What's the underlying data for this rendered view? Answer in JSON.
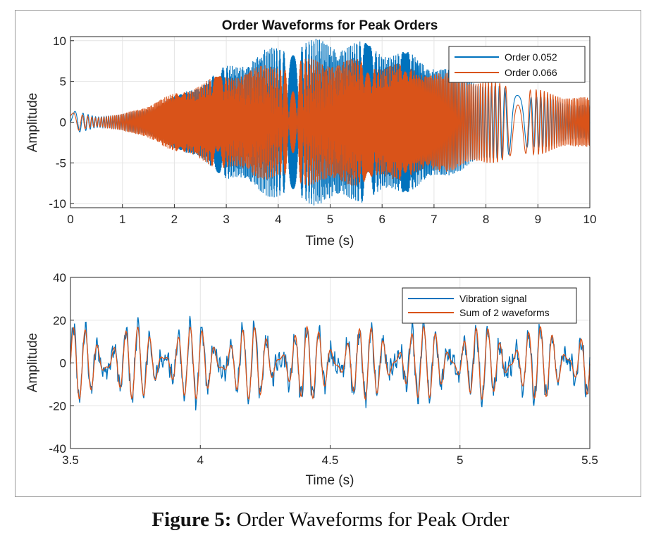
{
  "caption": {
    "label": "Figure 5:",
    "text": " Order Waveforms for Peak Order"
  },
  "colors": {
    "series1": "#0072BD",
    "series2": "#D95319",
    "grid": "#e4e4e4",
    "axis": "#262626"
  },
  "chart_data": [
    {
      "type": "line",
      "title": "Order Waveforms for Peak Orders",
      "xlabel": "Time (s)",
      "ylabel": "Amplitude",
      "xlim": [
        0,
        10
      ],
      "ylim": [
        -10.5,
        10.5
      ],
      "xticks": [
        0,
        1,
        2,
        3,
        4,
        5,
        6,
        7,
        8,
        9,
        10
      ],
      "yticks": [
        10,
        5,
        0,
        -5,
        -10
      ],
      "grid": true,
      "legend_position": "top-right",
      "series": [
        {
          "name": "Order 0.052",
          "envelope": {
            "t": [
              0,
              0.5,
              1.0,
              1.5,
              2.0,
              2.5,
              3.0,
              3.5,
              4.0,
              4.5,
              5.0,
              5.5,
              6.0,
              6.5,
              7.0,
              7.5,
              8.0,
              8.5,
              9.0,
              9.5,
              10.0
            ],
            "amp": [
              1.5,
              0.7,
              1.0,
              1.8,
              3.2,
              5.0,
              7.0,
              8.4,
              9.6,
              10.2,
              10.3,
              10.0,
              9.5,
              8.6,
              7.5,
              6.1,
              4.9,
              4.0,
              3.3,
              2.6,
              2.2
            ]
          }
        },
        {
          "name": "Order 0.066",
          "envelope": {
            "t": [
              0,
              0.5,
              1.0,
              1.5,
              2.0,
              2.5,
              3.0,
              3.5,
              4.0,
              4.5,
              5.0,
              5.5,
              6.0,
              6.5,
              7.0,
              7.5,
              8.0,
              8.5,
              9.0,
              9.5,
              10.0
            ],
            "amp": [
              1.2,
              0.6,
              1.0,
              2.2,
              3.6,
              5.0,
              6.0,
              6.8,
              7.4,
              7.8,
              8.0,
              7.8,
              7.5,
              7.0,
              6.4,
              5.8,
              5.2,
              4.6,
              4.0,
              3.4,
              3.0
            ]
          }
        }
      ]
    },
    {
      "type": "line",
      "xlabel": "Time (s)",
      "ylabel": "Amplitude",
      "xlim": [
        3.5,
        5.5
      ],
      "ylim": [
        -40,
        40
      ],
      "xticks": [
        3.5,
        4,
        4.5,
        5,
        5.5
      ],
      "yticks": [
        40,
        20,
        0,
        -20,
        -40
      ],
      "grid": true,
      "legend_position": "top-right",
      "series": [
        {
          "name": "Vibration signal",
          "approx_peak": 27
        },
        {
          "name": "Sum of 2 waveforms",
          "approx_peak": 18
        }
      ]
    }
  ]
}
